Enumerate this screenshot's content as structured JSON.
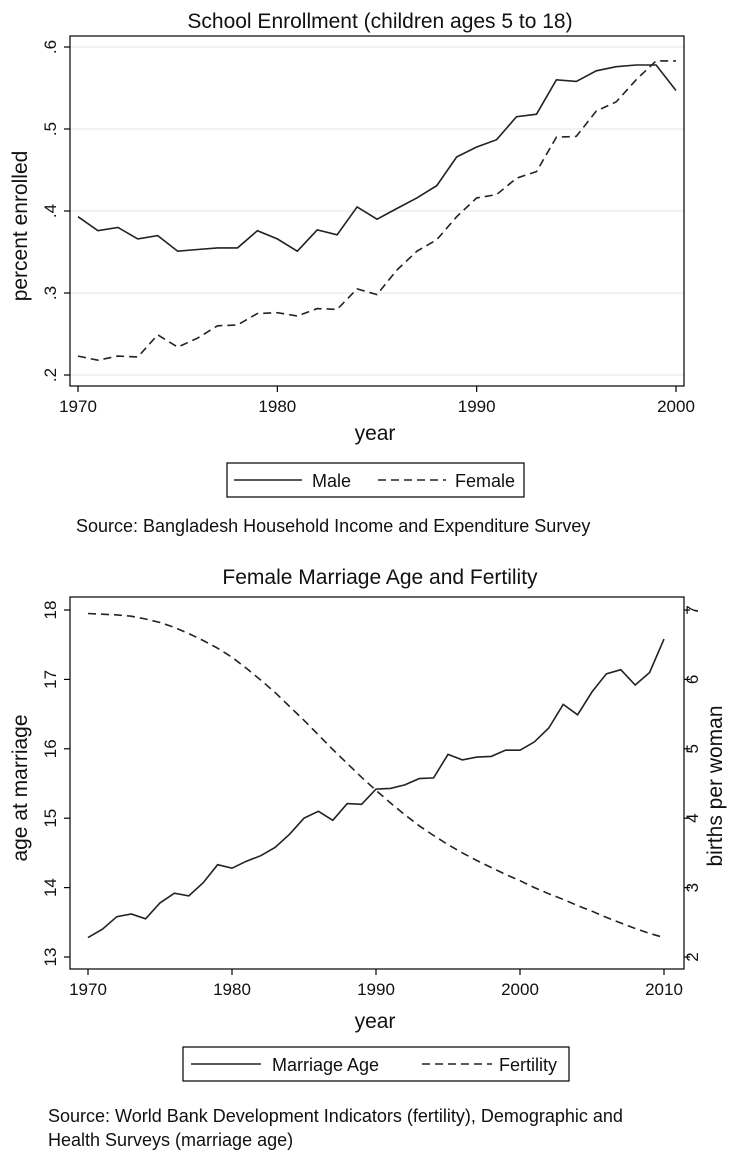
{
  "chart_data": [
    {
      "type": "line",
      "title": "School Enrollment (children ages 5 to 18)",
      "xlabel": "year",
      "ylabel": "percent enrolled",
      "xlim": [
        1970,
        2000
      ],
      "ylim": [
        0.2,
        0.6
      ],
      "x_ticks": [
        "1970",
        "1980",
        "1990",
        "2000"
      ],
      "y_ticks": [
        ".2",
        ".3",
        ".4",
        ".5",
        ".6"
      ],
      "grid": true,
      "legend": "bottom",
      "x": [
        1970,
        1971,
        1972,
        1973,
        1974,
        1975,
        1976,
        1977,
        1978,
        1979,
        1980,
        1981,
        1982,
        1983,
        1984,
        1985,
        1986,
        1987,
        1988,
        1989,
        1990,
        1991,
        1992,
        1993,
        1994,
        1995,
        1996,
        1997,
        1998,
        1999,
        2000
      ],
      "series": [
        {
          "name": "Male",
          "values": [
            0.393,
            0.376,
            0.38,
            0.366,
            0.37,
            0.351,
            0.353,
            0.355,
            0.355,
            0.376,
            0.366,
            0.351,
            0.377,
            0.371,
            0.405,
            0.39,
            0.403,
            0.416,
            0.431,
            0.466,
            0.478,
            0.487,
            0.515,
            0.518,
            0.56,
            0.558,
            0.571,
            0.576,
            0.578,
            0.578,
            0.547
          ]
        },
        {
          "name": "Female",
          "values": [
            0.223,
            0.218,
            0.223,
            0.222,
            0.249,
            0.234,
            0.245,
            0.26,
            0.261,
            0.275,
            0.276,
            0.272,
            0.281,
            0.28,
            0.305,
            0.298,
            0.328,
            0.351,
            0.365,
            0.393,
            0.416,
            0.42,
            0.44,
            0.448,
            0.49,
            0.491,
            0.522,
            0.533,
            0.56,
            0.583,
            0.583
          ]
        }
      ]
    },
    {
      "type": "line",
      "title": "Female Marriage Age and Fertility",
      "xlabel": "year",
      "ylabel": "age at marriage",
      "ylabel_right": "births per woman",
      "xlim": [
        1970,
        2010
      ],
      "ylim": [
        13,
        18
      ],
      "ylim_right": [
        2,
        7
      ],
      "x_ticks": [
        "1970",
        "1980",
        "1990",
        "2000",
        "2010"
      ],
      "y_ticks": [
        "13",
        "14",
        "15",
        "16",
        "17",
        "18"
      ],
      "y_ticks_right": [
        "2",
        "3",
        "4",
        "5",
        "6",
        "7"
      ],
      "grid": false,
      "legend": "bottom",
      "x": [
        1970,
        1971,
        1972,
        1973,
        1974,
        1975,
        1976,
        1977,
        1978,
        1979,
        1980,
        1981,
        1982,
        1983,
        1984,
        1985,
        1986,
        1987,
        1988,
        1989,
        1990,
        1991,
        1992,
        1993,
        1994,
        1995,
        1996,
        1997,
        1998,
        1999,
        2000,
        2001,
        2002,
        2003,
        2004,
        2005,
        2006,
        2007,
        2008,
        2009,
        2010
      ],
      "series": [
        {
          "name": "Marriage Age",
          "axis": "left",
          "values": [
            13.28,
            13.4,
            13.58,
            13.62,
            13.55,
            13.78,
            13.92,
            13.88,
            14.07,
            14.33,
            14.28,
            14.38,
            14.46,
            14.58,
            14.77,
            15.0,
            15.1,
            14.97,
            15.21,
            15.2,
            15.42,
            15.43,
            15.48,
            15.57,
            15.58,
            15.92,
            15.84,
            15.88,
            15.89,
            15.98,
            15.98,
            16.1,
            16.3,
            16.64,
            16.49,
            16.82,
            17.08,
            17.14,
            16.92,
            17.1,
            17.58
          ]
        },
        {
          "name": "Fertility",
          "axis": "right",
          "values": [
            6.95,
            6.94,
            6.93,
            6.91,
            6.87,
            6.82,
            6.75,
            6.66,
            6.56,
            6.45,
            6.32,
            6.16,
            5.99,
            5.81,
            5.61,
            5.41,
            5.2,
            4.99,
            4.79,
            4.59,
            4.4,
            4.22,
            4.05,
            3.89,
            3.75,
            3.62,
            3.5,
            3.39,
            3.29,
            3.19,
            3.1,
            3.0,
            2.91,
            2.83,
            2.74,
            2.66,
            2.57,
            2.49,
            2.41,
            2.34,
            2.28
          ]
        }
      ]
    }
  ],
  "sources": [
    "Source: Bangladesh Household Income and Expenditure Survey",
    "Source: World Bank Development Indicators (fertility), Demographic and",
    "Health Surveys (marriage age)"
  ]
}
